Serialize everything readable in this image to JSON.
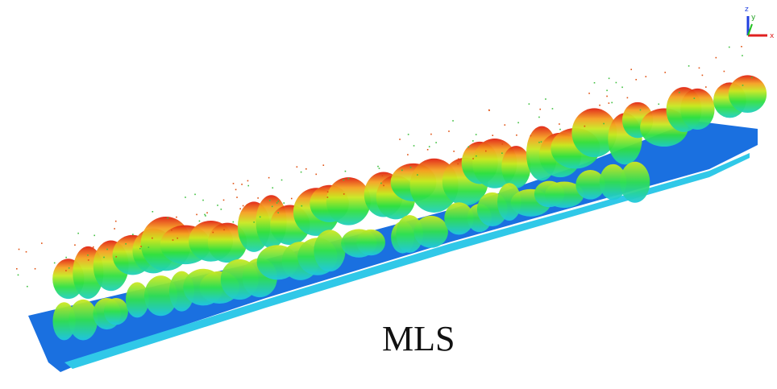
{
  "label": "MLS",
  "axes": {
    "z": "z",
    "y": "y",
    "x": "x"
  }
}
